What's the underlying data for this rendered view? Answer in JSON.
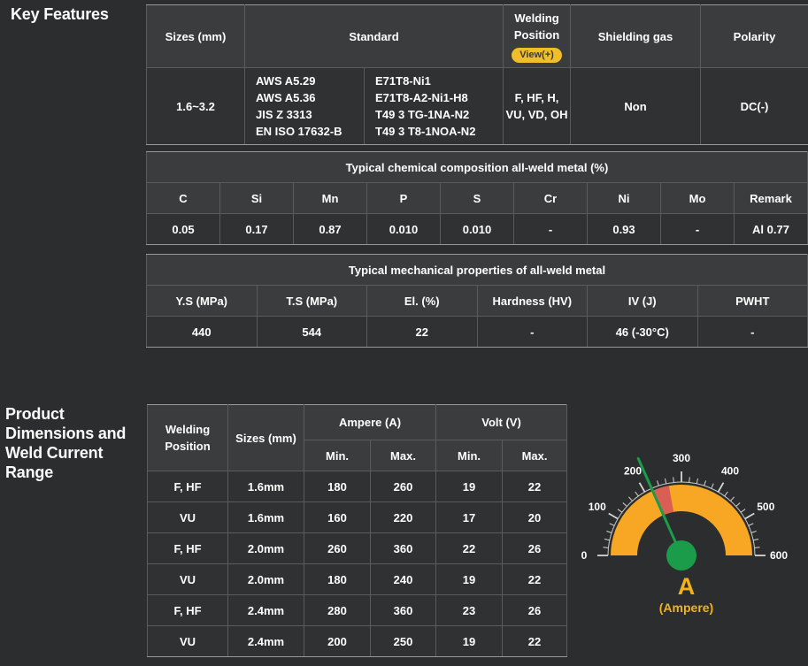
{
  "key_features": {
    "heading": "Key Features",
    "table": {
      "headers": {
        "sizes": "Sizes (mm)",
        "standard": "Standard",
        "welding_position": "Welding Position",
        "view_button": "View(+)",
        "shielding_gas": "Shielding gas",
        "polarity": "Polarity"
      },
      "row": {
        "sizes": "1.6~3.2",
        "standard_a": [
          "AWS A5.29",
          "AWS A5.36",
          "JIS Z 3313",
          "EN ISO 17632-B"
        ],
        "standard_b": [
          "E71T8-Ni1",
          "E71T8-A2-Ni1-H8",
          "T49 3 TG-1NA-N2",
          "T49 3 T8-1NOA-N2"
        ],
        "welding_position": "F, HF, H, VU, VD, OH",
        "shielding_gas": "Non",
        "polarity": "DC(-)"
      }
    }
  },
  "chemical": {
    "title": "Typical chemical composition all-weld metal (%)",
    "headers": [
      "C",
      "Si",
      "Mn",
      "P",
      "S",
      "Cr",
      "Ni",
      "Mo",
      "Remark"
    ],
    "values": [
      "0.05",
      "0.17",
      "0.87",
      "0.010",
      "0.010",
      "-",
      "0.93",
      "-",
      "Al 0.77"
    ]
  },
  "mechanical": {
    "title": "Typical mechanical properties of all-weld metal",
    "headers": [
      "Y.S (MPa)",
      "T.S (MPa)",
      "El. (%)",
      "Hardness (HV)",
      "IV (J)",
      "PWHT"
    ],
    "values": [
      "440",
      "544",
      "22",
      "-",
      "46 (-30°C)",
      "-"
    ]
  },
  "product_dimensions": {
    "heading_lines": [
      "Product",
      "Dimensions and",
      "Weld Current",
      "Range"
    ],
    "table": {
      "col_welding_position": "Welding Position",
      "col_sizes": "Sizes (mm)",
      "col_ampere": "Ampere (A)",
      "col_volt": "Volt (V)",
      "col_min": "Min.",
      "col_max": "Max.",
      "rows": [
        {
          "position": "F, HF",
          "size": "1.6mm",
          "a_min": "180",
          "a_max": "260",
          "v_min": "19",
          "v_max": "22"
        },
        {
          "position": "VU",
          "size": "1.6mm",
          "a_min": "160",
          "a_max": "220",
          "v_min": "17",
          "v_max": "20"
        },
        {
          "position": "F, HF",
          "size": "2.0mm",
          "a_min": "260",
          "a_max": "360",
          "v_min": "22",
          "v_max": "26"
        },
        {
          "position": "VU",
          "size": "2.0mm",
          "a_min": "180",
          "a_max": "240",
          "v_min": "19",
          "v_max": "22"
        },
        {
          "position": "F, HF",
          "size": "2.4mm",
          "a_min": "280",
          "a_max": "360",
          "v_min": "23",
          "v_max": "26"
        },
        {
          "position": "VU",
          "size": "2.4mm",
          "a_min": "200",
          "a_max": "250",
          "v_min": "19",
          "v_max": "22"
        }
      ]
    }
  },
  "gauge": {
    "min": 0,
    "max": 600,
    "tick_step": 20,
    "label_step": 100,
    "labels": [
      "0",
      "100",
      "200",
      "300",
      "400",
      "500",
      "600"
    ],
    "needle_value": 220,
    "band": {
      "from": 218,
      "to": 266
    },
    "unit": "A",
    "unit_caption": "(Ampere)",
    "colors": {
      "ring": "#f7a723",
      "band": "#d95f55",
      "needle": "#1a9c4b",
      "hub": "#1a9c4b",
      "tick": "#d6d6d6",
      "label": "#ffffff",
      "unit_text": "#f0b31e"
    }
  }
}
